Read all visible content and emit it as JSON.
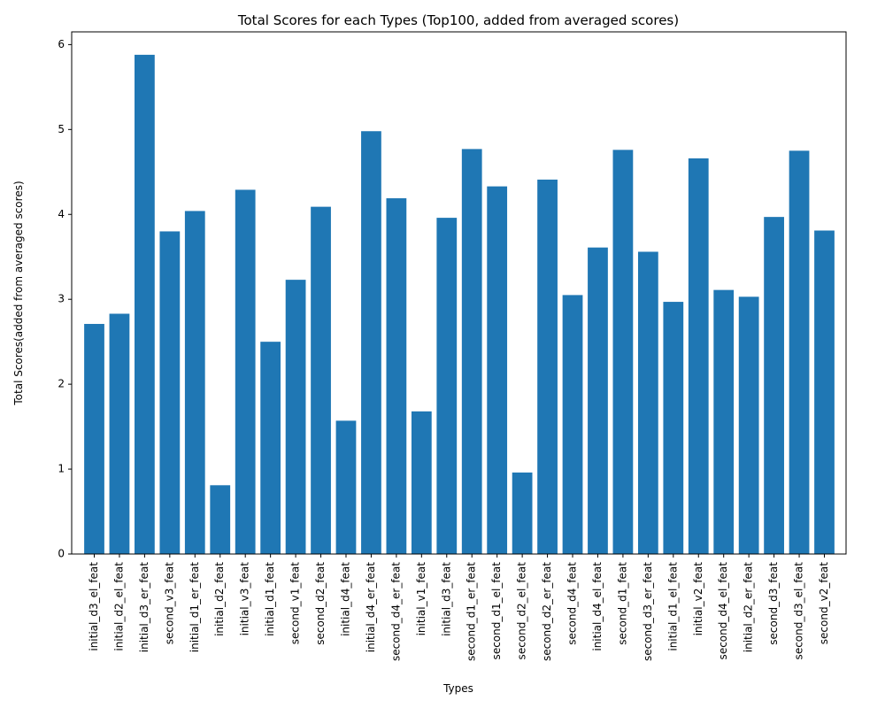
{
  "chart_data": {
    "type": "bar",
    "title": "Total Scores for each Types (Top100, added from averaged scores)",
    "xlabel": "Types",
    "ylabel": "Total Scores(added from averaged scores)",
    "ylim": [
      0,
      6.15
    ],
    "yticks": [
      0,
      1,
      2,
      3,
      4,
      5,
      6
    ],
    "grid": false,
    "bar_color": "#1f77b4",
    "categories": [
      "initial_d3_el_feat",
      "initial_d2_el_feat",
      "initial_d3_er_feat",
      "second_v3_feat",
      "initial_d1_er_feat",
      "initial_d2_feat",
      "initial_v3_feat",
      "initial_d1_feat",
      "second_v1_feat",
      "second_d2_feat",
      "initial_d4_feat",
      "initial_d4_er_feat",
      "second_d4_er_feat",
      "initial_v1_feat",
      "initial_d3_feat",
      "second_d1_er_feat",
      "second_d1_el_feat",
      "second_d2_el_feat",
      "second_d2_er_feat",
      "second_d4_feat",
      "initial_d4_el_feat",
      "second_d1_feat",
      "second_d3_er_feat",
      "initial_d1_el_feat",
      "initial_v2_feat",
      "second_d4_el_feat",
      "initial_d2_er_feat",
      "second_d3_feat",
      "second_d3_el_feat",
      "second_v2_feat"
    ],
    "values": [
      2.71,
      2.83,
      5.88,
      3.8,
      4.04,
      0.81,
      4.29,
      2.5,
      3.23,
      4.09,
      1.57,
      4.98,
      4.19,
      1.68,
      3.96,
      4.77,
      4.33,
      0.96,
      4.41,
      3.05,
      3.61,
      4.76,
      3.56,
      2.97,
      4.66,
      3.11,
      3.03,
      3.97,
      4.75,
      3.81
    ]
  }
}
